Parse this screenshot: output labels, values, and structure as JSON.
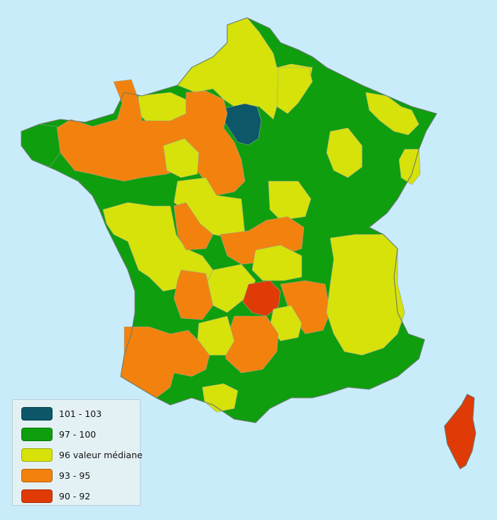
{
  "colors": {
    "sea": "#c9ecfb",
    "dark_teal": "#0c5768",
    "green": "#0e9e0e",
    "yellow": "#d6e20a",
    "orange": "#f2820d",
    "red": "#e03a06"
  },
  "legend": {
    "items": [
      {
        "label": "101 - 103",
        "color": "#0c5768"
      },
      {
        "label": "97 - 100",
        "color": "#0e9e0e"
      },
      {
        "label": "96 valeur médiane",
        "color": "#d6e20a"
      },
      {
        "label": "93 - 95",
        "color": "#f2820d"
      },
      {
        "label": "90 - 92",
        "color": "#e03a06"
      }
    ]
  }
}
